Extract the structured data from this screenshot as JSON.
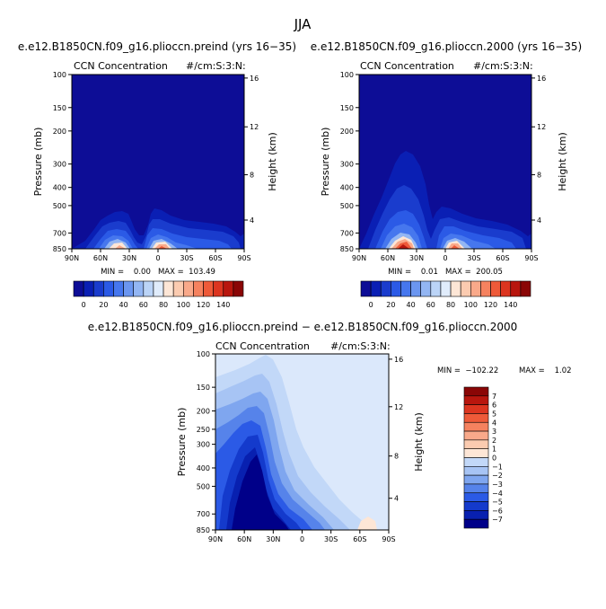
{
  "figure": {
    "title": "JJA",
    "diff_title": "e.e12.B1850CN.f09_g16.plioccn.preind − e.e12.B1850CN.f09_g16.plioccn.2000"
  },
  "axes": {
    "ylabel": "Pressure (mb)",
    "ylabel_right": "Height (km)",
    "p_ticks": [
      "100",
      "150",
      "200",
      "250",
      "300",
      "400",
      "500",
      "700",
      "850"
    ],
    "p_ticks_small": [
      "100",
      "150",
      "200",
      "300",
      "400",
      "500",
      "700",
      "850"
    ],
    "h_ticks": [
      "16",
      "12",
      "8",
      "4"
    ],
    "x_ticks": [
      "90N",
      "60N",
      "30N",
      "0",
      "30S",
      "60S",
      "90S"
    ]
  },
  "colors": {
    "blues": [
      "#0d0d96",
      "#0a1fb4",
      "#1a3ccd",
      "#2b5ae6",
      "#4677ee",
      "#6b96f0",
      "#93b6f3",
      "#bbd4f7",
      "#e0ecfb"
    ],
    "reds": [
      "#fde6d6",
      "#fbcbb0",
      "#f9a98a",
      "#f5825f",
      "#ee5a39",
      "#dc3520",
      "#b8160e",
      "#8a0606"
    ],
    "diff_bg": "#dbe8fb",
    "diff_blues": [
      "#c2d8f8",
      "#a7c4f4",
      "#7fa6ef",
      "#5683ea",
      "#2b5ae6",
      "#143acc",
      "#0820b0",
      "#000089"
    ]
  },
  "chart_data": [
    {
      "type": "heatmap",
      "subtitle": "e.e12.B1850CN.f09_g16.plioccn.preind (yrs 16−35)",
      "variable": "CCN Concentration",
      "units": "#/cm:S:3:N:",
      "stats": "MIN =    0.00   MAX =  103.49",
      "min": 0.0,
      "max": 103.49,
      "colorbar_labels": [
        "0",
        "20",
        "40",
        "60",
        "80",
        "100",
        "120",
        "140"
      ],
      "xlim": [
        90,
        -90
      ],
      "ylim": [
        100,
        850
      ]
    },
    {
      "type": "heatmap",
      "subtitle": "e.e12.B1850CN.f09_g16.plioccn.2000 (yrs 16−35)",
      "variable": "CCN Concentration",
      "units": "#/cm:S:3:N:",
      "stats": "MIN =    0.01   MAX =  200.05",
      "min": 0.01,
      "max": 200.05,
      "colorbar_labels": [
        "0",
        "20",
        "40",
        "60",
        "80",
        "100",
        "120",
        "140"
      ],
      "xlim": [
        90,
        -90
      ],
      "ylim": [
        100,
        850
      ]
    },
    {
      "type": "heatmap",
      "subtitle": "",
      "variable": "CCN Concentration",
      "units": "#/cm:S:3:N:",
      "stats_min": "MIN =  −102.22",
      "stats_max": "MAX =    1.02",
      "min": -102.22,
      "max": 1.02,
      "colorbar_labels": [
        "7",
        "6",
        "5",
        "4",
        "3",
        "2",
        "1",
        "0",
        "−1",
        "−2",
        "−3",
        "−4",
        "−5",
        "−6",
        "−7"
      ],
      "xlim": [
        90,
        -90
      ],
      "ylim": [
        100,
        850
      ]
    }
  ]
}
